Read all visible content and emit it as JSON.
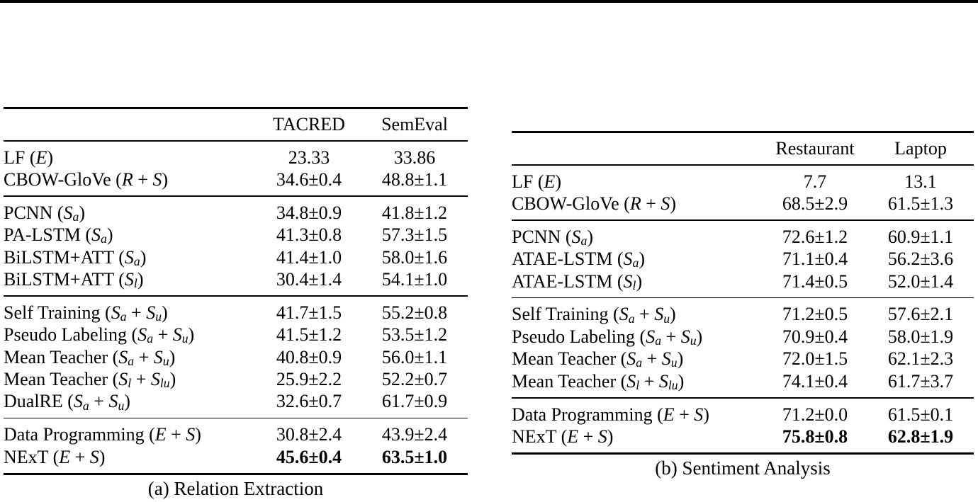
{
  "tables": [
    {
      "caption": "(a) Relation Extraction",
      "columns": [
        "TACRED",
        "SemEval"
      ],
      "groups": [
        {
          "rows": [
            {
              "label": "LF (*E*)",
              "values": [
                "23.33",
                "33.86"
              ],
              "bold_values": false
            },
            {
              "label": "CBOW-GloVe (*R* + *S*)",
              "values": [
                "34.6±0.4",
                "48.8±1.1"
              ],
              "bold_values": false
            }
          ]
        },
        {
          "rows": [
            {
              "label": "PCNN (*S*~a~)",
              "values": [
                "34.8±0.9",
                "41.8±1.2"
              ],
              "bold_values": false
            },
            {
              "label": "PA-LSTM (*S*~a~)",
              "values": [
                "41.3±0.8",
                "57.3±1.5"
              ],
              "bold_values": false
            },
            {
              "label": "BiLSTM+ATT (*S*~a~)",
              "values": [
                "41.4±1.0",
                "58.0±1.6"
              ],
              "bold_values": false
            },
            {
              "label": "BiLSTM+ATT (*S*~l~)",
              "values": [
                "30.4±1.4",
                "54.1±1.0"
              ],
              "bold_values": false
            }
          ]
        },
        {
          "rows": [
            {
              "label": "Self Training (*S*~a~ + *S*~u~)",
              "values": [
                "41.7±1.5",
                "55.2±0.8"
              ],
              "bold_values": false
            },
            {
              "label": "Pseudo Labeling (*S*~a~ + *S*~u~)",
              "values": [
                "41.5±1.2",
                "53.5±1.2"
              ],
              "bold_values": false
            },
            {
              "label": "Mean Teacher (*S*~a~ + *S*~u~)",
              "values": [
                "40.8±0.9",
                "56.0±1.1"
              ],
              "bold_values": false
            },
            {
              "label": "Mean Teacher (*S*~l~ + *S*~lu~)",
              "values": [
                "25.9±2.2",
                "52.2±0.7"
              ],
              "bold_values": false
            },
            {
              "label": "DualRE (*S*~a~ + *S*~u~)",
              "values": [
                "32.6±0.7",
                "61.7±0.9"
              ],
              "bold_values": false
            }
          ]
        },
        {
          "rows": [
            {
              "label": "Data Programming (*E* + *S*)",
              "values": [
                "30.8±2.4",
                "43.9±2.4"
              ],
              "bold_values": false
            },
            {
              "label": "NExT (*E* + *S*)",
              "values": [
                "45.6±0.4",
                "63.5±1.0"
              ],
              "bold_values": true
            }
          ]
        }
      ]
    },
    {
      "caption": "(b) Sentiment Analysis",
      "columns": [
        "Restaurant",
        "Laptop"
      ],
      "groups": [
        {
          "rows": [
            {
              "label": "LF (*E*)",
              "values": [
                "7.7",
                "13.1"
              ],
              "bold_values": false
            },
            {
              "label": "CBOW-GloVe (*R* + *S*)",
              "values": [
                "68.5±2.9",
                "61.5±1.3"
              ],
              "bold_values": false
            }
          ]
        },
        {
          "rows": [
            {
              "label": "PCNN (*S*~a~)",
              "values": [
                "72.6±1.2",
                "60.9±1.1"
              ],
              "bold_values": false
            },
            {
              "label": "ATAE-LSTM (*S*~a~)",
              "values": [
                "71.1±0.4",
                "56.2±3.6"
              ],
              "bold_values": false
            },
            {
              "label": "ATAE-LSTM (*S*~l~)",
              "values": [
                "71.4±0.5",
                "52.0±1.4"
              ],
              "bold_values": false
            }
          ]
        },
        {
          "rows": [
            {
              "label": "Self Training (*S*~a~ + *S*~u~)",
              "values": [
                "71.2±0.5",
                "57.6±2.1"
              ],
              "bold_values": false
            },
            {
              "label": "Pseudo Labeling (*S*~a~ + *S*~u~)",
              "values": [
                "70.9±0.4",
                "58.0±1.9"
              ],
              "bold_values": false
            },
            {
              "label": "Mean Teacher (*S*~a~ + *S*~u~)",
              "values": [
                "72.0±1.5",
                "62.1±2.3"
              ],
              "bold_values": false
            },
            {
              "label": "Mean Teacher (*S*~l~ + *S*~lu~)",
              "values": [
                "74.1±0.4",
                "61.7±3.7"
              ],
              "bold_values": false
            }
          ]
        },
        {
          "rows": [
            {
              "label": "Data Programming (*E* + *S*)",
              "values": [
                "71.2±0.0",
                "61.5±0.1"
              ],
              "bold_values": false
            },
            {
              "label": "NExT (*E* + *S*)",
              "values": [
                "75.8±0.8",
                "62.8±1.9"
              ],
              "bold_values": true
            }
          ]
        }
      ]
    }
  ]
}
